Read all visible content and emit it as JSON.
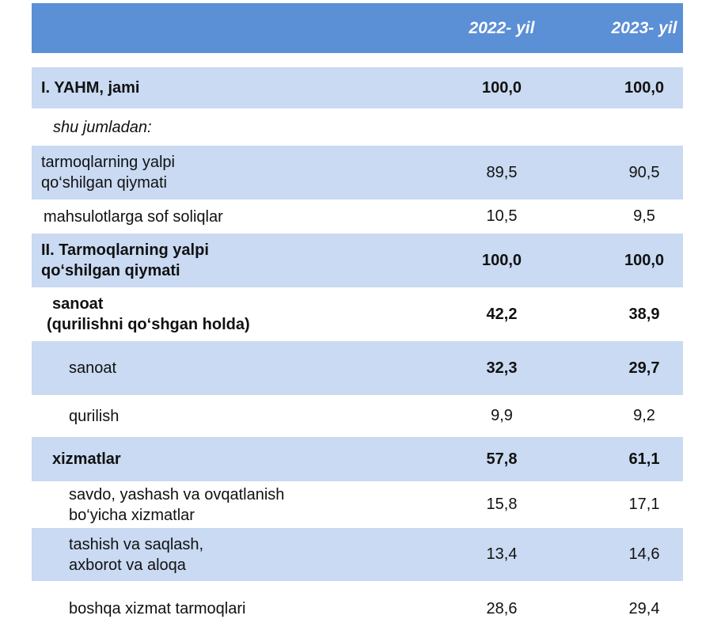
{
  "header": {
    "col1": "2022- yil",
    "col2": "2023- yil"
  },
  "rows": [
    {
      "line1": "I. YAHM, jami",
      "line2": "",
      "v1": "100,0",
      "v2": "100,0"
    },
    {
      "line1": "shu jumladan:",
      "line2": "",
      "v1": "",
      "v2": ""
    },
    {
      "line1": "tarmoqlarning yalpi",
      "line2": "qo‘shilgan qiymati",
      "v1": "89,5",
      "v2": "90,5"
    },
    {
      "line1": "mahsulotlarga sof soliqlar",
      "line2": "",
      "v1": "10,5",
      "v2": "9,5"
    },
    {
      "line1": "II. Tarmoqlarning yalpi",
      "line2": "qo‘shilgan qiymati",
      "v1": "100,0",
      "v2": "100,0"
    },
    {
      "line1": "sanoat",
      "line2": "(qurilishni qo‘shgan holda)",
      "v1": "42,2",
      "v2": "38,9"
    },
    {
      "line1": "sanoat",
      "line2": "",
      "v1": "32,3",
      "v2": "29,7"
    },
    {
      "line1": "qurilish",
      "line2": "",
      "v1": "9,9",
      "v2": "9,2"
    },
    {
      "line1": "xizmatlar",
      "line2": "",
      "v1": "57,8",
      "v2": "61,1"
    },
    {
      "line1": "savdo, yashash va ovqatlanish",
      "line2": "bo‘yicha xizmatlar",
      "v1": "15,8",
      "v2": "17,1"
    },
    {
      "line1": "tashish va saqlash,",
      "line2": "axborot va aloqa",
      "v1": "13,4",
      "v2": "14,6"
    },
    {
      "line1": "boshqa xizmat tarmoqlari",
      "line2": "",
      "v1": "28,6",
      "v2": "29,4"
    }
  ]
}
